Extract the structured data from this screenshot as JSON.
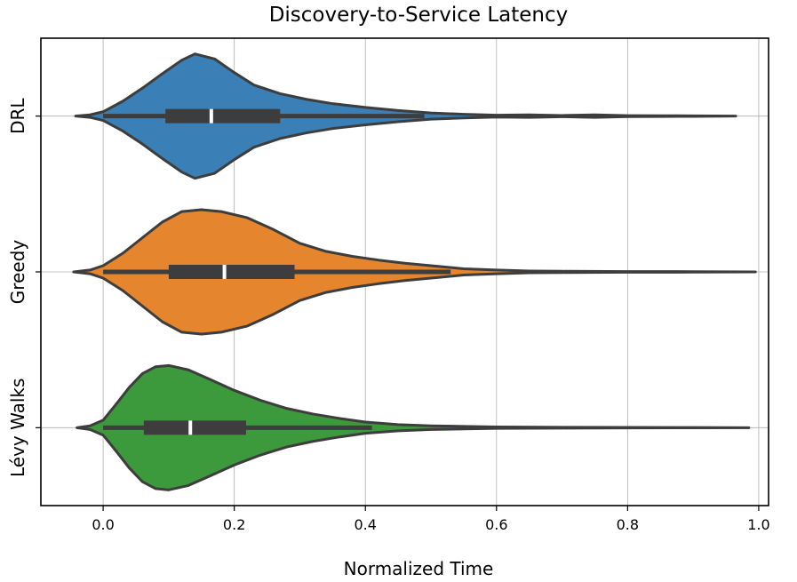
{
  "chart_data": {
    "type": "violin",
    "orientation": "horizontal",
    "title": "Discovery-to-Service Latency",
    "xlabel": "Normalized Time",
    "ylabel": "",
    "xlim": [
      -0.095,
      1.015
    ],
    "xticks": [
      0.0,
      0.2,
      0.4,
      0.6,
      0.8,
      1.0
    ],
    "xtick_labels": [
      "0.0",
      "0.2",
      "0.4",
      "0.6",
      "0.8",
      "1.0"
    ],
    "grid": true,
    "edge_color": "#3d3d3d",
    "categories": [
      "DRL",
      "Greedy",
      "Lévy Walks"
    ],
    "series": [
      {
        "name": "DRL",
        "color": "#3a7fb6",
        "min": -0.042,
        "max": 0.965,
        "q1": 0.095,
        "median": 0.165,
        "q3": 0.27,
        "whisker_low": 0.0,
        "whisker_high": 0.49,
        "density": [
          [
            -0.042,
            0.0
          ],
          [
            -0.02,
            0.02
          ],
          [
            0.0,
            0.07
          ],
          [
            0.03,
            0.24
          ],
          [
            0.06,
            0.45
          ],
          [
            0.09,
            0.68
          ],
          [
            0.12,
            0.9
          ],
          [
            0.14,
            1.0
          ],
          [
            0.17,
            0.92
          ],
          [
            0.2,
            0.7
          ],
          [
            0.23,
            0.5
          ],
          [
            0.27,
            0.36
          ],
          [
            0.31,
            0.27
          ],
          [
            0.35,
            0.2
          ],
          [
            0.4,
            0.14
          ],
          [
            0.45,
            0.09
          ],
          [
            0.5,
            0.05
          ],
          [
            0.55,
            0.03
          ],
          [
            0.6,
            0.015
          ],
          [
            0.65,
            0.02
          ],
          [
            0.7,
            0.01
          ],
          [
            0.75,
            0.02
          ],
          [
            0.8,
            0.008
          ],
          [
            0.85,
            0.006
          ],
          [
            0.9,
            0.005
          ],
          [
            0.965,
            0.0
          ]
        ]
      },
      {
        "name": "Greedy",
        "color": "#e5852e",
        "min": -0.045,
        "max": 0.995,
        "q1": 0.1,
        "median": 0.185,
        "q3": 0.292,
        "whisker_low": 0.0,
        "whisker_high": 0.53,
        "density": [
          [
            -0.045,
            0.0
          ],
          [
            -0.02,
            0.03
          ],
          [
            0.0,
            0.1
          ],
          [
            0.03,
            0.3
          ],
          [
            0.06,
            0.55
          ],
          [
            0.09,
            0.8
          ],
          [
            0.12,
            0.97
          ],
          [
            0.15,
            1.0
          ],
          [
            0.18,
            0.97
          ],
          [
            0.22,
            0.87
          ],
          [
            0.26,
            0.68
          ],
          [
            0.3,
            0.46
          ],
          [
            0.34,
            0.33
          ],
          [
            0.38,
            0.25
          ],
          [
            0.42,
            0.19
          ],
          [
            0.46,
            0.14
          ],
          [
            0.5,
            0.1
          ],
          [
            0.55,
            0.05
          ],
          [
            0.6,
            0.03
          ],
          [
            0.65,
            0.015
          ],
          [
            0.7,
            0.01
          ],
          [
            0.8,
            0.006
          ],
          [
            0.9,
            0.004
          ],
          [
            0.995,
            0.0
          ]
        ]
      },
      {
        "name": "Lévy Walks",
        "color": "#3c9a3c",
        "min": -0.04,
        "max": 0.985,
        "q1": 0.062,
        "median": 0.133,
        "q3": 0.218,
        "whisker_low": 0.0,
        "whisker_high": 0.41,
        "density": [
          [
            -0.04,
            0.0
          ],
          [
            -0.02,
            0.03
          ],
          [
            0.0,
            0.12
          ],
          [
            0.02,
            0.38
          ],
          [
            0.04,
            0.65
          ],
          [
            0.06,
            0.87
          ],
          [
            0.08,
            0.98
          ],
          [
            0.1,
            1.0
          ],
          [
            0.13,
            0.93
          ],
          [
            0.16,
            0.79
          ],
          [
            0.2,
            0.6
          ],
          [
            0.24,
            0.44
          ],
          [
            0.28,
            0.31
          ],
          [
            0.32,
            0.22
          ],
          [
            0.36,
            0.15
          ],
          [
            0.4,
            0.09
          ],
          [
            0.45,
            0.05
          ],
          [
            0.5,
            0.03
          ],
          [
            0.55,
            0.02
          ],
          [
            0.6,
            0.012
          ],
          [
            0.7,
            0.007
          ],
          [
            0.8,
            0.004
          ],
          [
            0.9,
            0.003
          ],
          [
            0.985,
            0.0
          ]
        ]
      }
    ]
  }
}
